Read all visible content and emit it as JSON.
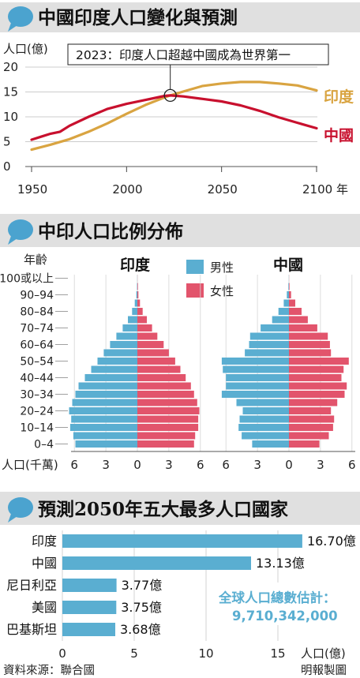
{
  "colors": {
    "india": "#d9a441",
    "china": "#c8102e",
    "male": "#5aaed1",
    "female": "#e2546c",
    "header_bg": "#e0e0e0",
    "bubble": "#4ba3cf",
    "total_text": "#5aaed1"
  },
  "section1": {
    "title": "中國印度人口變化與預測"
  },
  "section2": {
    "title": "中印人口比例分佈"
  },
  "section3": {
    "title": "預測2050年五大最多人口國家"
  },
  "chart_data": [
    {
      "type": "line",
      "ylabel": "人口(億)",
      "ylim": [
        0,
        20
      ],
      "yticks": [
        "20",
        "15",
        "10",
        "5",
        "0"
      ],
      "xlim": [
        1950,
        2100
      ],
      "xticks": [
        "1950",
        "2000",
        "2050",
        "2100 年"
      ],
      "annotation": "2023：印度人口超越中國成為世界第一",
      "annotation_x": 2023,
      "annotation_y": 14.3,
      "series": [
        {
          "name": "印度",
          "x": [
            1950,
            1960,
            1970,
            1980,
            1990,
            2000,
            2010,
            2020,
            2023,
            2030,
            2040,
            2050,
            2060,
            2070,
            2080,
            2090,
            2100
          ],
          "values": [
            3.4,
            4.4,
            5.5,
            7.0,
            8.7,
            10.6,
            12.4,
            13.9,
            14.3,
            15.1,
            16.2,
            16.7,
            17.0,
            17.0,
            16.7,
            16.3,
            15.3
          ]
        },
        {
          "name": "中國",
          "x": [
            1950,
            1955,
            1960,
            1965,
            1970,
            1980,
            1990,
            2000,
            2010,
            2020,
            2023,
            2030,
            2040,
            2050,
            2060,
            2070,
            2080,
            2090,
            2100
          ],
          "values": [
            5.4,
            6.0,
            6.6,
            7.0,
            8.2,
            10.0,
            11.6,
            12.6,
            13.4,
            14.2,
            14.3,
            14.1,
            13.6,
            13.1,
            12.3,
            11.2,
            9.9,
            8.8,
            7.7
          ]
        }
      ]
    },
    {
      "type": "bar",
      "orientation": "horizontal-pyramid",
      "ylabel": "年齡",
      "xlabel": "人口(千萬)",
      "xlim": [
        -6,
        6
      ],
      "xticks": [
        "6",
        "3",
        "0",
        "3",
        "6"
      ],
      "legend": [
        "男性",
        "女性"
      ],
      "categories": [
        "0–4",
        "5–9",
        "10–14",
        "15–19",
        "20–24",
        "25–29",
        "30–34",
        "35–39",
        "40–44",
        "45–49",
        "50–54",
        "55–59",
        "60–64",
        "65–69",
        "70–74",
        "75–79",
        "80–84",
        "85–89",
        "90–94",
        "95–99",
        "100或以上"
      ],
      "category_labels_shown": [
        "100或以上",
        "90–94",
        "80–84",
        "70–74",
        "60–64",
        "50–54",
        "40–44",
        "30–34",
        "20–24",
        "10–14",
        "0–4"
      ],
      "panels": [
        {
          "name": "印度",
          "male": [
            5.9,
            6.1,
            6.4,
            6.3,
            6.5,
            6.2,
            5.9,
            5.6,
            5.0,
            4.4,
            3.8,
            3.2,
            2.6,
            2.0,
            1.4,
            0.9,
            0.5,
            0.25,
            0.1,
            0.04,
            0.01
          ],
          "female": [
            5.4,
            5.5,
            5.8,
            5.8,
            5.9,
            5.7,
            5.4,
            5.1,
            4.6,
            4.1,
            3.6,
            3.0,
            2.5,
            1.9,
            1.4,
            0.9,
            0.5,
            0.25,
            0.1,
            0.05,
            0.01
          ]
        },
        {
          "name": "中國",
          "male": [
            3.5,
            4.5,
            4.8,
            4.7,
            4.4,
            5.0,
            6.4,
            6.0,
            6.0,
            6.3,
            6.4,
            4.2,
            3.8,
            3.7,
            2.7,
            1.6,
            1.0,
            0.5,
            0.2,
            0.05,
            0.01
          ],
          "female": [
            2.9,
            3.8,
            4.2,
            4.3,
            4.0,
            4.6,
            5.3,
            5.5,
            5.0,
            5.2,
            5.7,
            4.0,
            3.9,
            3.7,
            2.7,
            1.8,
            1.2,
            0.6,
            0.2,
            0.05,
            0.01
          ]
        }
      ]
    },
    {
      "type": "bar",
      "orientation": "horizontal",
      "xlabel": "人口(億)",
      "xlim": [
        0,
        17
      ],
      "xticks": [
        "0",
        "5",
        "10",
        "15"
      ],
      "categories": [
        "印度",
        "中國",
        "尼日利亞",
        "美國",
        "巴基斯坦"
      ],
      "values": [
        16.7,
        13.13,
        3.77,
        3.75,
        3.68
      ],
      "value_labels": [
        "16.70億",
        "13.13億",
        "3.77億",
        "3.75億",
        "3.68億"
      ],
      "total_label": "全球人口總數估計：",
      "total_value": "9,710,342,000"
    }
  ],
  "footer": {
    "source": "資料來源：聯合國",
    "credit": "明報製圖"
  }
}
